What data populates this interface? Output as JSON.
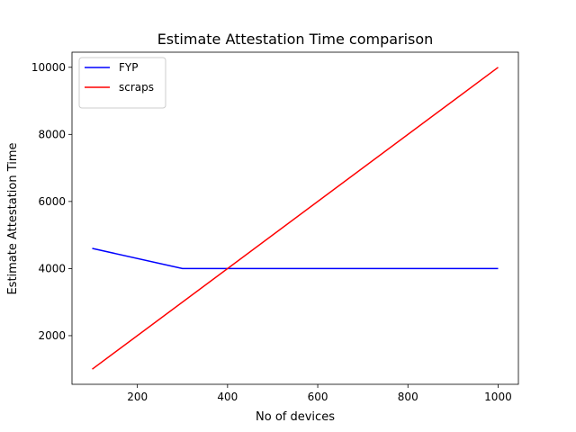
{
  "chart_data": {
    "type": "line",
    "title": "Estimate Attestation Time comparison",
    "xlabel": "No of devices",
    "ylabel": "Estimate Attestation Time",
    "xlim": [
      55,
      1045
    ],
    "ylim": [
      550,
      10450
    ],
    "xticks": [
      200,
      400,
      600,
      800,
      1000
    ],
    "yticks": [
      2000,
      4000,
      6000,
      8000,
      10000
    ],
    "grid": false,
    "legend_position": "top-left",
    "series": [
      {
        "name": "FYP",
        "color": "#0000ff",
        "x": [
          100,
          300,
          400,
          500,
          600,
          700,
          800,
          900,
          1000
        ],
        "y": [
          4600,
          4000,
          4000,
          4000,
          4000,
          4000,
          4000,
          4000,
          4000
        ]
      },
      {
        "name": "scraps",
        "color": "#ff0000",
        "x": [
          100,
          1000
        ],
        "y": [
          1000,
          10000
        ]
      }
    ]
  }
}
